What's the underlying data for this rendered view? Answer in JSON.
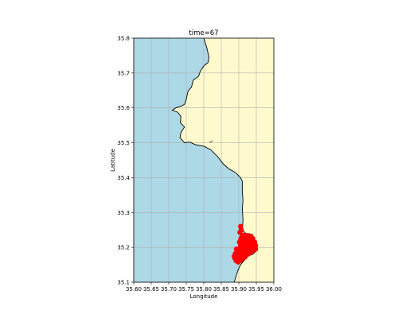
{
  "figure": {
    "title": "time=67",
    "xlabel": "Longitude",
    "ylabel": "Latitude"
  },
  "chart_data": {
    "type": "scatter",
    "title": "time=67",
    "xlabel": "Longitude",
    "ylabel": "Latitude",
    "xlim": [
      35.6,
      36.0
    ],
    "ylim": [
      35.1,
      35.8
    ],
    "xticks": [
      35.6,
      35.65,
      35.7,
      35.75,
      35.8,
      35.85,
      35.9,
      35.95,
      36.0
    ],
    "xtick_labels": [
      "35.60",
      "35.65",
      "35.70",
      "35.75",
      "35.80",
      "35.85",
      "35.90",
      "35.95",
      "36.00"
    ],
    "yticks": [
      35.1,
      35.2,
      35.3,
      35.4,
      35.5,
      35.6,
      35.7,
      35.8
    ],
    "ytick_labels": [
      "35.1",
      "35.2",
      "35.3",
      "35.4",
      "35.5",
      "35.6",
      "35.7",
      "35.8"
    ],
    "grid": true,
    "colors": {
      "sea": "#add8e6",
      "land": "#fffacd",
      "coastline": "#000000",
      "particles": "#ff0000",
      "grid": "#b0b0b0"
    },
    "coastline": [
      [
        35.8,
        35.8
      ],
      [
        35.808,
        35.775
      ],
      [
        35.815,
        35.745
      ],
      [
        35.812,
        35.73
      ],
      [
        35.8,
        35.72
      ],
      [
        35.79,
        35.705
      ],
      [
        35.785,
        35.69
      ],
      [
        35.77,
        35.68
      ],
      [
        35.765,
        35.66
      ],
      [
        35.755,
        35.648
      ],
      [
        35.75,
        35.625
      ],
      [
        35.745,
        35.61
      ],
      [
        35.735,
        35.605
      ],
      [
        35.72,
        35.6
      ],
      [
        35.71,
        35.593
      ],
      [
        35.725,
        35.588
      ],
      [
        35.735,
        35.575
      ],
      [
        35.733,
        35.558
      ],
      [
        35.745,
        35.545
      ],
      [
        35.735,
        35.53
      ],
      [
        35.732,
        35.515
      ],
      [
        35.745,
        35.5
      ],
      [
        35.76,
        35.502
      ],
      [
        35.775,
        35.495
      ],
      [
        35.8,
        35.49
      ],
      [
        35.82,
        35.48
      ],
      [
        35.84,
        35.46
      ],
      [
        35.855,
        35.44
      ],
      [
        35.872,
        35.425
      ],
      [
        35.89,
        35.415
      ],
      [
        35.905,
        35.4
      ],
      [
        35.91,
        35.39
      ],
      [
        35.91,
        35.36
      ],
      [
        35.912,
        35.335
      ],
      [
        35.91,
        35.31
      ],
      [
        35.912,
        35.28
      ],
      [
        35.91,
        35.25
      ],
      [
        35.92,
        35.24
      ],
      [
        35.935,
        35.238
      ],
      [
        35.945,
        35.225
      ],
      [
        35.95,
        35.21
      ],
      [
        35.95,
        35.19
      ],
      [
        35.94,
        35.18
      ],
      [
        35.925,
        35.175
      ],
      [
        35.915,
        35.162
      ],
      [
        35.905,
        35.15
      ],
      [
        35.898,
        35.135
      ],
      [
        35.893,
        35.12
      ],
      [
        35.887,
        35.1
      ]
    ],
    "islet": [
      [
        35.815,
        35.5
      ],
      [
        35.822,
        35.505
      ],
      [
        35.828,
        35.507
      ],
      [
        35.82,
        35.502
      ]
    ],
    "particles": {
      "points": [
        [
          35.905,
          35.26
        ],
        [
          35.907,
          35.25
        ],
        [
          35.903,
          35.243
        ],
        [
          35.91,
          35.235
        ],
        [
          35.918,
          35.235
        ],
        [
          35.925,
          35.232
        ],
        [
          35.93,
          35.228
        ],
        [
          35.935,
          35.232
        ],
        [
          35.94,
          35.225
        ],
        [
          35.945,
          35.215
        ],
        [
          35.948,
          35.205
        ],
        [
          35.948,
          35.195
        ],
        [
          35.94,
          35.19
        ],
        [
          35.932,
          35.185
        ],
        [
          35.925,
          35.18
        ],
        [
          35.918,
          35.172
        ],
        [
          35.91,
          35.168
        ],
        [
          35.905,
          35.162
        ],
        [
          35.9,
          35.17
        ],
        [
          35.895,
          35.175
        ],
        [
          35.89,
          35.182
        ],
        [
          35.888,
          35.17
        ],
        [
          35.892,
          35.162
        ],
        [
          35.898,
          35.158
        ],
        [
          35.905,
          35.175
        ],
        [
          35.9,
          35.19
        ],
        [
          35.893,
          35.195
        ],
        [
          35.905,
          35.2
        ],
        [
          35.91,
          35.21
        ],
        [
          35.915,
          35.218
        ],
        [
          35.92,
          35.225
        ],
        [
          35.925,
          35.215
        ],
        [
          35.93,
          35.205
        ],
        [
          35.935,
          35.195
        ],
        [
          35.92,
          35.195
        ],
        [
          35.91,
          35.185
        ],
        [
          35.915,
          35.2
        ],
        [
          35.94,
          35.205
        ],
        [
          35.943,
          35.21
        ],
        [
          35.9,
          35.182
        ],
        [
          35.895,
          35.165
        ],
        [
          35.887,
          35.175
        ],
        [
          35.902,
          35.215
        ],
        [
          35.908,
          35.222
        ]
      ],
      "polygon": [
        [
          35.9,
          35.23
        ],
        [
          35.91,
          35.238
        ],
        [
          35.925,
          35.238
        ],
        [
          35.938,
          35.232
        ],
        [
          35.948,
          35.218
        ],
        [
          35.95,
          35.2
        ],
        [
          35.948,
          35.188
        ],
        [
          35.935,
          35.182
        ],
        [
          35.92,
          35.176
        ],
        [
          35.91,
          35.165
        ],
        [
          35.9,
          35.158
        ],
        [
          35.89,
          35.165
        ],
        [
          35.887,
          35.178
        ],
        [
          35.893,
          35.19
        ],
        [
          35.898,
          35.205
        ],
        [
          35.897,
          35.218
        ]
      ]
    }
  }
}
